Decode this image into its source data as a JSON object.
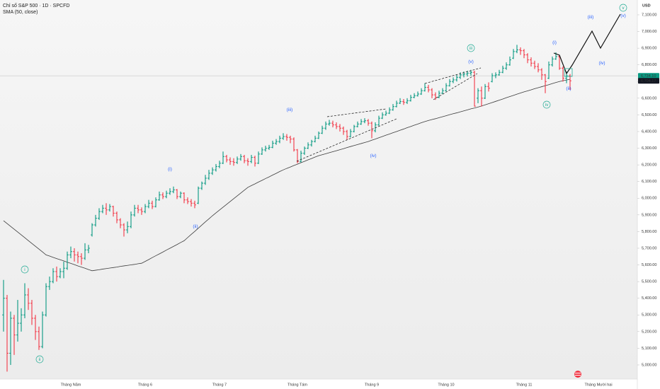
{
  "chart_data": {
    "type": "ohlc",
    "title": "Chỉ số S&P 500 · 1D · SPCFD",
    "currency": "USD",
    "up_color": "#089981",
    "down_color": "#f23645",
    "categories": [
      null,
      null,
      null,
      null,
      null,
      null,
      null,
      null,
      null,
      null,
      null,
      null,
      null,
      null,
      null,
      null,
      null,
      null,
      null,
      "Tháng Năm",
      null,
      null,
      null,
      null,
      null,
      null,
      null,
      null,
      null,
      null,
      null,
      null,
      null,
      null,
      null,
      null,
      null,
      null,
      null,
      null,
      "Tháng 6",
      null,
      null,
      null,
      null,
      null,
      null,
      null,
      null,
      null,
      null,
      null,
      null,
      null,
      null,
      null,
      null,
      null,
      null,
      null,
      null,
      "Tháng 7",
      null,
      null,
      null,
      null,
      null,
      null,
      null,
      null,
      null,
      null,
      null,
      null,
      null,
      null,
      null,
      null,
      null,
      null,
      null,
      null,
      null,
      "Tháng Tám",
      null,
      null,
      null,
      null,
      null,
      null,
      null,
      null,
      null,
      null,
      null,
      null,
      null,
      null,
      null,
      null,
      null,
      null,
      null,
      null,
      "Tháng 9",
      null,
      null,
      null,
      null,
      null,
      null,
      null,
      null,
      null,
      null,
      null,
      null,
      null,
      null,
      null,
      null,
      null,
      null,
      null,
      null,
      "Tháng 10",
      null,
      null,
      null,
      null,
      null,
      null,
      null,
      null,
      null,
      null,
      null,
      null,
      null,
      null,
      null,
      null,
      null,
      null,
      null,
      null,
      null,
      "Tháng 11",
      null,
      null,
      null,
      null,
      null,
      null,
      null,
      null,
      null,
      null,
      null,
      null,
      null,
      null,
      null,
      null,
      null,
      null,
      null,
      null,
      "Tháng Mười hai",
      null,
      null,
      null,
      null,
      null,
      null,
      null,
      null,
      null,
      null,
      null,
      null
    ],
    "open": [
      5300,
      5400,
      5070,
      5280,
      5180,
      5250,
      5300,
      5420,
      5370,
      5280,
      5200,
      5110,
      5300,
      5470,
      5500,
      5560,
      5530,
      5560,
      5580,
      5660,
      5680,
      5660,
      5650,
      5640,
      5690,
      5780,
      5840,
      5880,
      5920,
      5940,
      5930,
      5950,
      5910,
      5870,
      5840,
      5810,
      5830,
      5900,
      5940,
      5930,
      5920,
      5950,
      5970,
      5950,
      5990,
      6020,
      6010,
      6030,
      6040,
      6050,
      6010,
      6030,
      5990,
      5980,
      5970,
      5970,
      6060,
      6090,
      6120,
      6150,
      6170,
      6190,
      6210,
      6250,
      6230,
      6220,
      6215,
      6235,
      6250,
      6225,
      6220,
      6245,
      6210,
      6265,
      6290,
      6300,
      6305,
      6330,
      6340,
      6360,
      6370,
      6365,
      6355,
      6290,
      6220,
      6270,
      6300,
      6320,
      6340,
      6360,
      6390,
      6420,
      6445,
      6450,
      6440,
      6430,
      6420,
      6400,
      6370,
      6400,
      6430,
      6445,
      6460,
      6465,
      6450,
      6405,
      6440,
      6480,
      6500,
      6510,
      6530,
      6550,
      6570,
      6580,
      6575,
      6585,
      6605,
      6615,
      6625,
      6645,
      6665,
      6650,
      6620,
      6605,
      6630,
      6645,
      6675,
      6700,
      6710,
      6725,
      6740,
      6745,
      6750,
      6755,
      6600,
      6645,
      6600,
      6670,
      6700,
      6735,
      6740,
      6755,
      6780,
      6800,
      6840,
      6880,
      6890,
      6885,
      6860,
      6830,
      6810,
      6790,
      6770,
      6740,
      6720,
      6800,
      6835,
      6850,
      6780,
      6720,
      6734,
      null,
      null,
      null,
      null,
      null,
      null,
      null,
      null,
      null,
      null,
      null,
      null,
      null,
      null,
      null,
      null,
      null,
      null,
      null,
      null
    ],
    "high": [
      5510,
      5420,
      5320,
      5300,
      5390,
      5340,
      5490,
      5460,
      5390,
      5300,
      5230,
      5320,
      5490,
      5530,
      5580,
      5590,
      5580,
      5620,
      5680,
      5710,
      5700,
      5680,
      5670,
      5730,
      5720,
      5850,
      5900,
      5940,
      5960,
      5970,
      5965,
      5955,
      5920,
      5880,
      5850,
      5860,
      5920,
      5960,
      5960,
      5945,
      5965,
      5990,
      5985,
      6005,
      6040,
      6035,
      6045,
      6060,
      6070,
      6055,
      6040,
      6035,
      6005,
      5995,
      5985,
      6070,
      6100,
      6140,
      6170,
      6185,
      6205,
      6225,
      6280,
      6260,
      6245,
      6240,
      6250,
      6265,
      6260,
      6240,
      6260,
      6255,
      6280,
      6305,
      6315,
      6320,
      6345,
      6355,
      6375,
      6390,
      6385,
      6375,
      6365,
      6295,
      6285,
      6310,
      6335,
      6350,
      6375,
      6400,
      6435,
      6460,
      6470,
      6465,
      6455,
      6445,
      6430,
      6410,
      6415,
      6440,
      6460,
      6475,
      6480,
      6475,
      6460,
      6455,
      6495,
      6515,
      6525,
      6545,
      6565,
      6585,
      6600,
      6595,
      6600,
      6620,
      6630,
      6640,
      6660,
      6690,
      6680,
      6660,
      6635,
      6645,
      6660,
      6690,
      6715,
      6725,
      6740,
      6755,
      6760,
      6765,
      6770,
      6765,
      6660,
      6670,
      6685,
      6695,
      6750,
      6755,
      6770,
      6795,
      6815,
      6850,
      6895,
      6920,
      6905,
      6895,
      6870,
      6845,
      6825,
      6810,
      6780,
      6745,
      6820,
      6850,
      6875,
      6860,
      6790,
      6760,
      6745,
      null,
      null,
      null,
      null,
      null,
      null,
      null,
      null,
      null,
      null,
      null,
      null,
      null,
      null,
      null,
      null,
      null,
      null,
      null,
      null
    ],
    "low": [
      5200,
      4960,
      5000,
      5060,
      5140,
      5200,
      5280,
      5330,
      5240,
      5150,
      5090,
      5100,
      5290,
      5450,
      5490,
      5500,
      5520,
      5520,
      5570,
      5640,
      5620,
      5610,
      5600,
      5630,
      5670,
      5770,
      5830,
      5870,
      5910,
      5900,
      5920,
      5890,
      5850,
      5820,
      5770,
      5790,
      5820,
      5890,
      5910,
      5900,
      5910,
      5940,
      5935,
      5945,
      5985,
      5995,
      6000,
      6020,
      6030,
      5995,
      6000,
      5970,
      5965,
      5950,
      5940,
      5965,
      6050,
      6080,
      6110,
      6140,
      6160,
      6180,
      6205,
      6215,
      6200,
      6195,
      6205,
      6225,
      6210,
      6195,
      6210,
      6190,
      6205,
      6260,
      6280,
      6290,
      6300,
      6320,
      6330,
      6350,
      6345,
      6330,
      6280,
      6210,
      6215,
      6260,
      6295,
      6310,
      6335,
      6355,
      6385,
      6410,
      6435,
      6425,
      6415,
      6400,
      6380,
      6350,
      6365,
      6395,
      6425,
      6440,
      6450,
      6435,
      6360,
      6395,
      6435,
      6475,
      6495,
      6505,
      6525,
      6545,
      6565,
      6560,
      6565,
      6580,
      6600,
      6610,
      6620,
      6640,
      6635,
      6600,
      6590,
      6600,
      6625,
      6640,
      6670,
      6690,
      6700,
      6715,
      6725,
      6730,
      6735,
      6550,
      6570,
      6550,
      6595,
      6640,
      6695,
      6720,
      6735,
      6750,
      6770,
      6795,
      6835,
      6870,
      6860,
      6840,
      6810,
      6790,
      6775,
      6755,
      6710,
      6630,
      6715,
      6790,
      6830,
      6770,
      6700,
      6690,
      6650,
      null,
      null,
      null,
      null,
      null,
      null,
      null,
      null,
      null,
      null,
      null,
      null,
      null,
      null,
      null,
      null,
      null,
      null,
      null,
      null
    ],
    "close": [
      5400,
      5070,
      5280,
      5180,
      5250,
      5300,
      5420,
      5370,
      5280,
      5200,
      5110,
      5300,
      5470,
      5500,
      5560,
      5530,
      5560,
      5580,
      5660,
      5680,
      5660,
      5650,
      5640,
      5690,
      5700,
      5840,
      5880,
      5920,
      5940,
      5930,
      5950,
      5910,
      5870,
      5840,
      5810,
      5830,
      5900,
      5940,
      5930,
      5920,
      5950,
      5970,
      5950,
      5990,
      6020,
      6010,
      6030,
      6040,
      6050,
      6010,
      6030,
      5990,
      5980,
      5970,
      5960,
      6060,
      6090,
      6120,
      6150,
      6170,
      6190,
      6210,
      6250,
      6230,
      6220,
      6215,
      6235,
      6250,
      6225,
      6220,
      6245,
      6210,
      6265,
      6290,
      6300,
      6305,
      6330,
      6340,
      6360,
      6370,
      6365,
      6355,
      6290,
      6220,
      6270,
      6300,
      6320,
      6340,
      6360,
      6390,
      6420,
      6445,
      6450,
      6440,
      6430,
      6420,
      6400,
      6370,
      6400,
      6430,
      6445,
      6460,
      6465,
      6450,
      6405,
      6440,
      6480,
      6500,
      6510,
      6530,
      6550,
      6570,
      6580,
      6575,
      6585,
      6605,
      6615,
      6625,
      6645,
      6665,
      6650,
      6620,
      6605,
      6630,
      6645,
      6675,
      6700,
      6710,
      6725,
      6740,
      6745,
      6750,
      6755,
      6552,
      6645,
      6600,
      6670,
      6660,
      6735,
      6740,
      6755,
      6780,
      6800,
      6830,
      6880,
      6890,
      6885,
      6860,
      6830,
      6810,
      6790,
      6770,
      6740,
      6700,
      6800,
      6835,
      6850,
      6780,
      6720,
      6734,
      6704.17,
      null,
      null,
      null,
      null,
      null,
      null,
      null,
      null,
      null,
      null,
      null,
      null,
      null,
      null,
      null,
      null,
      null,
      null,
      null,
      null
    ],
    "series": [
      {
        "name": "SMA (50, close)",
        "color": "#3c3c3c",
        "values": [
          5865,
          5848,
          5831,
          5814,
          5797,
          5780,
          5763,
          5746,
          5729,
          5712,
          5695,
          5678,
          5660,
          5653,
          5645,
          5638,
          5631,
          5624,
          5616,
          5609,
          5602,
          5594,
          5587,
          5580,
          5572,
          5565,
          5568,
          5571,
          5575,
          5578,
          5581,
          5584,
          5587,
          5591,
          5594,
          5597,
          5600,
          5603,
          5607,
          5610,
          5621,
          5632,
          5644,
          5655,
          5666,
          5677,
          5689,
          5700,
          5711,
          5722,
          5734,
          5745,
          5764,
          5783,
          5801,
          5820,
          5839,
          5858,
          5876,
          5895,
          5912,
          5929,
          5946,
          5963,
          5980,
          5997,
          6014,
          6031,
          6048,
          6065,
          6076,
          6086,
          6097,
          6107,
          6118,
          6128,
          6139,
          6149,
          6160,
          6170,
          6179,
          6187,
          6196,
          6204,
          6213,
          6221,
          6230,
          6238,
          6247,
          6255,
          6261,
          6267,
          6273,
          6279,
          6285,
          6291,
          6297,
          6304,
          6310,
          6316,
          6322,
          6328,
          6334,
          6340,
          6348,
          6355,
          6363,
          6370,
          6378,
          6385,
          6393,
          6400,
          6408,
          6415,
          6423,
          6430,
          6438,
          6445,
          6453,
          6460,
          6466,
          6472,
          6477,
          6483,
          6489,
          6495,
          6501,
          6507,
          6512,
          6518,
          6524,
          6530,
          6536,
          6541,
          6547,
          6553,
          6560,
          6567,
          6574,
          6581,
          6588,
          6595,
          6603,
          6610,
          6617,
          6624,
          6631,
          6638,
          6644,
          6650,
          6657,
          6663,
          6669,
          6675,
          6681,
          6688,
          6694,
          6700,
          6705,
          6709,
          6714,
          null,
          null,
          null,
          null,
          null,
          null,
          null,
          null,
          null,
          null,
          null,
          null,
          null,
          null,
          null,
          null,
          null,
          null,
          null,
          null
        ]
      }
    ],
    "ylim": [
      4915,
      7189
    ],
    "yticks": [
      {
        "value": 5000,
        "label": "5,000.00"
      },
      {
        "value": 5100,
        "label": "5,100.00"
      },
      {
        "value": 5200,
        "label": "5,200.00"
      },
      {
        "value": 5300,
        "label": "5,300.00"
      },
      {
        "value": 5400,
        "label": "5,400.00"
      },
      {
        "value": 5500,
        "label": "5,500.00"
      },
      {
        "value": 5600,
        "label": "5,600.00"
      },
      {
        "value": 5700,
        "label": "5,700.00"
      },
      {
        "value": 5800,
        "label": "5,800.00"
      },
      {
        "value": 5900,
        "label": "5,900.00"
      },
      {
        "value": 6000,
        "label": "6,000.00"
      },
      {
        "value": 6100,
        "label": "6,100.00"
      },
      {
        "value": 6200,
        "label": "6,200.00"
      },
      {
        "value": 6300,
        "label": "6,300.00"
      },
      {
        "value": 6400,
        "label": "6,400.00"
      },
      {
        "value": 6500,
        "label": "6,500.00"
      },
      {
        "value": 6600,
        "label": "6,600.00"
      },
      {
        "value": 6700,
        "label": "6,700.00"
      },
      {
        "value": 6800,
        "label": "6,800.00"
      },
      {
        "value": 6900,
        "label": "6,900.00"
      },
      {
        "value": 7000,
        "label": "7,000.00"
      },
      {
        "value": 7100,
        "label": "7,100.00"
      }
    ],
    "price_labels": [
      {
        "value": 6734.1,
        "label": "6,734.10",
        "color": "#089981"
      },
      {
        "value": 6704.17,
        "label": "6,704.17",
        "color": "#131722"
      }
    ],
    "annotations": [
      "i",
      "ii",
      "iii",
      "iv",
      "v",
      "(i)",
      "(ii)",
      "(iii)",
      "(iv)",
      "(v)",
      "(i)",
      "(ii)",
      "(iii)",
      "(iv)",
      "(v)"
    ]
  }
}
